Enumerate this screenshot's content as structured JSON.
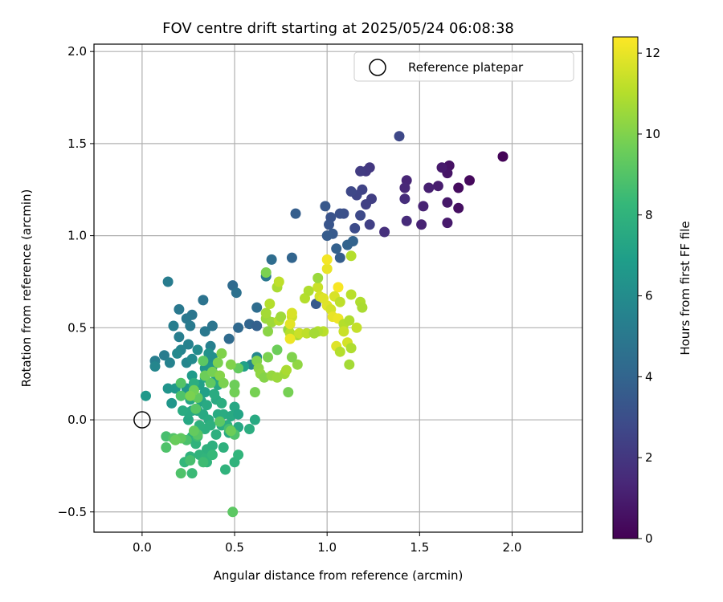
{
  "chart_data": {
    "type": "scatter",
    "title": "FOV centre drift starting at 2025/05/24 06:08:38",
    "xlabel": "Angular distance from reference (arcmin)",
    "ylabel": "Rotation from reference (arcmin)",
    "xlim": [
      -0.26,
      2.38
    ],
    "ylim": [
      -0.61,
      2.04
    ],
    "xticks": [
      0.0,
      0.5,
      1.0,
      1.5,
      2.0
    ],
    "xtick_labels": [
      "0.0",
      "0.5",
      "1.0",
      "1.5",
      "2.0"
    ],
    "yticks": [
      -0.5,
      0.0,
      0.5,
      1.0,
      1.5,
      2.0
    ],
    "ytick_labels": [
      "−0.5",
      "0.0",
      "0.5",
      "1.0",
      "1.5",
      "2.0"
    ],
    "grid": true,
    "legend": {
      "position": "top-right",
      "entries": [
        "Reference platepar"
      ]
    },
    "reference_point": {
      "x": 0.0,
      "y": 0.0,
      "label": "Reference platepar"
    },
    "colorbar": {
      "label": "Hours from first FF file",
      "colormap": "viridis",
      "range": [
        0,
        12.4
      ],
      "ticks": [
        0,
        2,
        4,
        6,
        8,
        10,
        12
      ],
      "tick_labels": [
        "0",
        "2",
        "4",
        "6",
        "8",
        "10",
        "12"
      ]
    },
    "colormap_stops": [
      "#440154",
      "#482878",
      "#3e4989",
      "#31688e",
      "#26828e",
      "#1f9e89",
      "#35b779",
      "#6ece58",
      "#b5de2b",
      "#fde725"
    ],
    "columns": [
      "x",
      "y",
      "hours"
    ],
    "points": [
      [
        1.95,
        1.43,
        0.1
      ],
      [
        1.77,
        1.3,
        0.3
      ],
      [
        1.71,
        1.26,
        0.4
      ],
      [
        1.71,
        1.15,
        0.5
      ],
      [
        1.66,
        1.38,
        0.6
      ],
      [
        1.65,
        1.34,
        0.7
      ],
      [
        1.65,
        1.18,
        0.8
      ],
      [
        1.65,
        1.07,
        0.9
      ],
      [
        1.62,
        1.37,
        0.9
      ],
      [
        1.6,
        1.27,
        1.0
      ],
      [
        1.55,
        1.26,
        1.1
      ],
      [
        1.52,
        1.16,
        1.2
      ],
      [
        1.51,
        1.06,
        1.2
      ],
      [
        1.43,
        1.3,
        1.3
      ],
      [
        1.42,
        1.26,
        1.4
      ],
      [
        1.43,
        1.08,
        1.5
      ],
      [
        1.42,
        1.2,
        1.6
      ],
      [
        1.31,
        1.02,
        1.7
      ],
      [
        1.39,
        1.54,
        2.7
      ],
      [
        1.23,
        1.37,
        2.0
      ],
      [
        1.21,
        1.35,
        2.1
      ],
      [
        1.18,
        1.35,
        2.2
      ],
      [
        1.24,
        1.2,
        2.3
      ],
      [
        1.21,
        1.17,
        2.4
      ],
      [
        1.23,
        1.06,
        2.4
      ],
      [
        1.19,
        1.25,
        2.5
      ],
      [
        1.16,
        1.22,
        2.6
      ],
      [
        1.13,
        1.24,
        2.7
      ],
      [
        1.18,
        1.11,
        2.8
      ],
      [
        1.15,
        1.04,
        2.9
      ],
      [
        1.09,
        1.12,
        3.0
      ],
      [
        1.07,
        1.12,
        3.1
      ],
      [
        1.02,
        1.1,
        3.2
      ],
      [
        1.01,
        1.06,
        3.3
      ],
      [
        0.99,
        1.16,
        3.4
      ],
      [
        1.03,
        1.01,
        3.5
      ],
      [
        1.0,
        1.0,
        3.6
      ],
      [
        1.07,
        0.88,
        3.7
      ],
      [
        1.05,
        0.93,
        3.8
      ],
      [
        1.11,
        0.95,
        3.9
      ],
      [
        1.14,
        0.97,
        3.9
      ],
      [
        0.94,
        0.63,
        3.5
      ],
      [
        0.83,
        1.12,
        3.7
      ],
      [
        0.81,
        0.88,
        4.0
      ],
      [
        0.7,
        0.87,
        4.4
      ],
      [
        0.67,
        0.78,
        5.0
      ],
      [
        0.49,
        0.73,
        4.3
      ],
      [
        0.51,
        0.69,
        4.6
      ],
      [
        0.62,
        0.61,
        4.4
      ],
      [
        0.58,
        0.52,
        4.0
      ],
      [
        0.62,
        0.51,
        3.8
      ],
      [
        0.52,
        0.5,
        4.2
      ],
      [
        0.47,
        0.44,
        4.3
      ],
      [
        0.33,
        0.65,
        4.7
      ],
      [
        0.27,
        0.57,
        4.9
      ],
      [
        0.2,
        0.6,
        5.0
      ],
      [
        0.24,
        0.55,
        5.0
      ],
      [
        0.26,
        0.51,
        5.1
      ],
      [
        0.17,
        0.51,
        5.3
      ],
      [
        0.14,
        0.75,
        5.2
      ],
      [
        0.38,
        0.51,
        4.8
      ],
      [
        0.34,
        0.48,
        5.0
      ],
      [
        0.2,
        0.45,
        5.3
      ],
      [
        0.25,
        0.41,
        5.5
      ],
      [
        0.21,
        0.38,
        5.6
      ],
      [
        0.19,
        0.36,
        5.8
      ],
      [
        0.12,
        0.35,
        5.2
      ],
      [
        0.07,
        0.32,
        5.3
      ],
      [
        0.07,
        0.29,
        5.7
      ],
      [
        0.15,
        0.31,
        5.5
      ],
      [
        0.24,
        0.31,
        5.7
      ],
      [
        0.27,
        0.33,
        5.9
      ],
      [
        0.37,
        0.4,
        5.4
      ],
      [
        0.36,
        0.36,
        6.3
      ],
      [
        0.35,
        0.31,
        6.0
      ],
      [
        0.34,
        0.28,
        6.5
      ],
      [
        0.38,
        0.29,
        6.5
      ],
      [
        0.4,
        0.24,
        6.8
      ],
      [
        0.59,
        0.3,
        5.6
      ],
      [
        0.62,
        0.34,
        5.8
      ],
      [
        0.02,
        0.13,
        6.6
      ],
      [
        0.14,
        0.17,
        6.4
      ],
      [
        0.16,
        0.09,
        6.5
      ],
      [
        0.18,
        0.17,
        6.6
      ],
      [
        0.24,
        0.17,
        6.6
      ],
      [
        0.27,
        0.24,
        6.7
      ],
      [
        0.28,
        0.18,
        6.9
      ],
      [
        0.31,
        0.19,
        7.0
      ],
      [
        0.34,
        0.15,
        7.0
      ],
      [
        0.32,
        0.1,
        7.2
      ],
      [
        0.26,
        0.11,
        7.3
      ],
      [
        0.27,
        0.05,
        7.4
      ],
      [
        0.3,
        0.05,
        7.4
      ],
      [
        0.35,
        0.08,
        7.5
      ],
      [
        0.33,
        0.03,
        7.5
      ],
      [
        0.36,
        0.0,
        7.6
      ],
      [
        0.41,
        0.03,
        7.6
      ],
      [
        0.4,
        0.11,
        7.5
      ],
      [
        0.41,
        0.19,
        7.4
      ],
      [
        0.39,
        0.14,
        7.6
      ],
      [
        0.43,
        0.09,
        7.7
      ],
      [
        0.44,
        0.03,
        7.6
      ],
      [
        0.48,
        0.02,
        7.5
      ],
      [
        0.5,
        0.07,
        7.4
      ],
      [
        0.52,
        0.03,
        7.2
      ],
      [
        0.52,
        -0.04,
        7.4
      ],
      [
        0.47,
        -0.07,
        7.5
      ],
      [
        0.46,
        -0.03,
        7.7
      ],
      [
        0.43,
        -0.03,
        7.7
      ],
      [
        0.4,
        -0.08,
        7.8
      ],
      [
        0.37,
        -0.03,
        7.8
      ],
      [
        0.34,
        -0.05,
        7.8
      ],
      [
        0.31,
        -0.03,
        7.9
      ],
      [
        0.25,
        0.0,
        7.4
      ],
      [
        0.25,
        0.04,
        7.5
      ],
      [
        0.22,
        0.05,
        7.6
      ],
      [
        0.27,
        -0.09,
        7.9
      ],
      [
        0.29,
        -0.13,
        8.0
      ],
      [
        0.35,
        -0.16,
        7.9
      ],
      [
        0.38,
        -0.14,
        7.8
      ],
      [
        0.31,
        -0.19,
        8.0
      ],
      [
        0.34,
        -0.21,
        8.1
      ],
      [
        0.35,
        -0.23,
        8.1
      ],
      [
        0.26,
        -0.2,
        8.0
      ],
      [
        0.23,
        -0.23,
        8.2
      ],
      [
        0.27,
        -0.29,
        8.4
      ],
      [
        0.44,
        -0.15,
        7.9
      ],
      [
        0.45,
        -0.27,
        8.0
      ],
      [
        0.5,
        -0.23,
        8.0
      ],
      [
        0.52,
        -0.19,
        8.1
      ],
      [
        0.58,
        -0.05,
        7.7
      ],
      [
        0.61,
        0.0,
        7.5
      ],
      [
        0.55,
        0.29,
        7.0
      ],
      [
        0.38,
        0.34,
        6.2
      ],
      [
        0.3,
        0.38,
        6.0
      ],
      [
        0.34,
        0.23,
        7.1
      ],
      [
        0.28,
        0.2,
        7.7
      ],
      [
        0.38,
        -0.19,
        8.3
      ],
      [
        0.33,
        -0.23,
        8.5
      ],
      [
        0.47,
        -0.05,
        8.7
      ],
      [
        0.5,
        -0.08,
        8.9
      ],
      [
        0.3,
        -0.09,
        8.5
      ],
      [
        0.21,
        -0.29,
        8.9
      ],
      [
        0.26,
        -0.22,
        8.7
      ],
      [
        0.24,
        -0.11,
        8.8
      ],
      [
        0.13,
        -0.09,
        8.7
      ],
      [
        0.13,
        -0.15,
        8.9
      ],
      [
        0.17,
        -0.1,
        9.0
      ],
      [
        0.21,
        -0.1,
        9.3
      ],
      [
        0.42,
        -0.01,
        9.2
      ],
      [
        0.48,
        -0.06,
        9.6
      ],
      [
        0.49,
        -0.5,
        9.2
      ],
      [
        0.33,
        0.32,
        9.2
      ],
      [
        0.37,
        0.2,
        9.3
      ],
      [
        0.34,
        0.24,
        9.6
      ],
      [
        0.38,
        0.26,
        9.8
      ],
      [
        0.42,
        0.24,
        10.1
      ],
      [
        0.44,
        0.2,
        9.9
      ],
      [
        0.5,
        0.15,
        9.7
      ],
      [
        0.5,
        0.19,
        9.6
      ],
      [
        0.52,
        0.28,
        9.4
      ],
      [
        0.48,
        0.3,
        10.0
      ],
      [
        0.41,
        0.31,
        9.9
      ],
      [
        0.43,
        0.36,
        10.0
      ],
      [
        0.3,
        0.12,
        9.3
      ],
      [
        0.21,
        0.2,
        9.0
      ],
      [
        0.21,
        0.13,
        8.9
      ],
      [
        0.29,
        0.06,
        9.1
      ],
      [
        0.3,
        -0.08,
        9.1
      ],
      [
        0.28,
        -0.06,
        9.4
      ],
      [
        0.18,
        -0.11,
        9.5
      ],
      [
        0.28,
        0.16,
        9.7
      ],
      [
        0.26,
        0.13,
        9.9
      ],
      [
        0.62,
        0.32,
        10.0
      ],
      [
        0.63,
        0.28,
        10.2
      ],
      [
        0.64,
        0.25,
        10.3
      ],
      [
        0.66,
        0.23,
        10.1
      ],
      [
        0.68,
        0.34,
        9.9
      ],
      [
        0.7,
        0.24,
        10.4
      ],
      [
        0.73,
        0.23,
        10.5
      ],
      [
        0.61,
        0.15,
        9.8
      ],
      [
        0.79,
        0.15,
        9.8
      ],
      [
        0.84,
        0.3,
        10.3
      ],
      [
        0.81,
        0.34,
        10.0
      ],
      [
        0.73,
        0.38,
        9.6
      ],
      [
        0.67,
        0.8,
        9.9
      ],
      [
        0.67,
        0.55,
        10.5
      ],
      [
        0.67,
        0.58,
        10.7
      ],
      [
        0.7,
        0.53,
        10.6
      ],
      [
        0.68,
        0.48,
        10.2
      ],
      [
        0.73,
        0.72,
        10.8
      ],
      [
        0.79,
        0.49,
        10.4
      ],
      [
        0.84,
        0.46,
        10.8
      ],
      [
        0.77,
        0.25,
        10.6
      ],
      [
        0.78,
        0.27,
        10.8
      ],
      [
        0.74,
        0.54,
        11.0
      ],
      [
        0.69,
        0.63,
        11.0
      ],
      [
        0.74,
        0.75,
        11.2
      ],
      [
        0.8,
        0.47,
        11.0
      ],
      [
        0.85,
        0.47,
        11.4
      ],
      [
        0.89,
        0.47,
        11.2
      ],
      [
        0.88,
        0.66,
        11.0
      ],
      [
        0.9,
        0.7,
        10.9
      ],
      [
        0.95,
        0.72,
        11.4
      ],
      [
        0.96,
        0.67,
        11.6
      ],
      [
        0.98,
        0.66,
        11.8
      ],
      [
        0.95,
        0.77,
        10.5
      ],
      [
        1.0,
        0.62,
        11.8
      ],
      [
        1.02,
        0.6,
        11.6
      ],
      [
        1.03,
        0.56,
        12.0
      ],
      [
        1.06,
        0.55,
        12.1
      ],
      [
        1.06,
        0.72,
        12.3
      ],
      [
        1.04,
        0.67,
        11.7
      ],
      [
        1.07,
        0.64,
        11.2
      ],
      [
        1.09,
        0.52,
        11.0
      ],
      [
        1.13,
        0.68,
        11.1
      ],
      [
        1.09,
        0.48,
        11.4
      ],
      [
        1.11,
        0.42,
        11.6
      ],
      [
        1.05,
        0.4,
        11.8
      ],
      [
        1.07,
        0.37,
        11.0
      ],
      [
        1.13,
        0.39,
        10.9
      ],
      [
        1.12,
        0.54,
        10.9
      ],
      [
        1.16,
        0.5,
        11.3
      ],
      [
        1.12,
        0.3,
        10.7
      ],
      [
        1.18,
        0.64,
        10.9
      ],
      [
        1.19,
        0.61,
        10.8
      ],
      [
        1.13,
        0.89,
        11.0
      ],
      [
        1.0,
        0.82,
        12.0
      ],
      [
        1.0,
        0.87,
        12.2
      ],
      [
        0.98,
        0.48,
        11.1
      ],
      [
        0.95,
        0.48,
        10.9
      ],
      [
        0.93,
        0.47,
        10.7
      ],
      [
        0.81,
        0.56,
        11.5
      ],
      [
        0.81,
        0.58,
        11.7
      ],
      [
        0.8,
        0.52,
        11.9
      ],
      [
        0.8,
        0.44,
        12.1
      ],
      [
        0.75,
        0.56,
        10.6
      ]
    ]
  }
}
